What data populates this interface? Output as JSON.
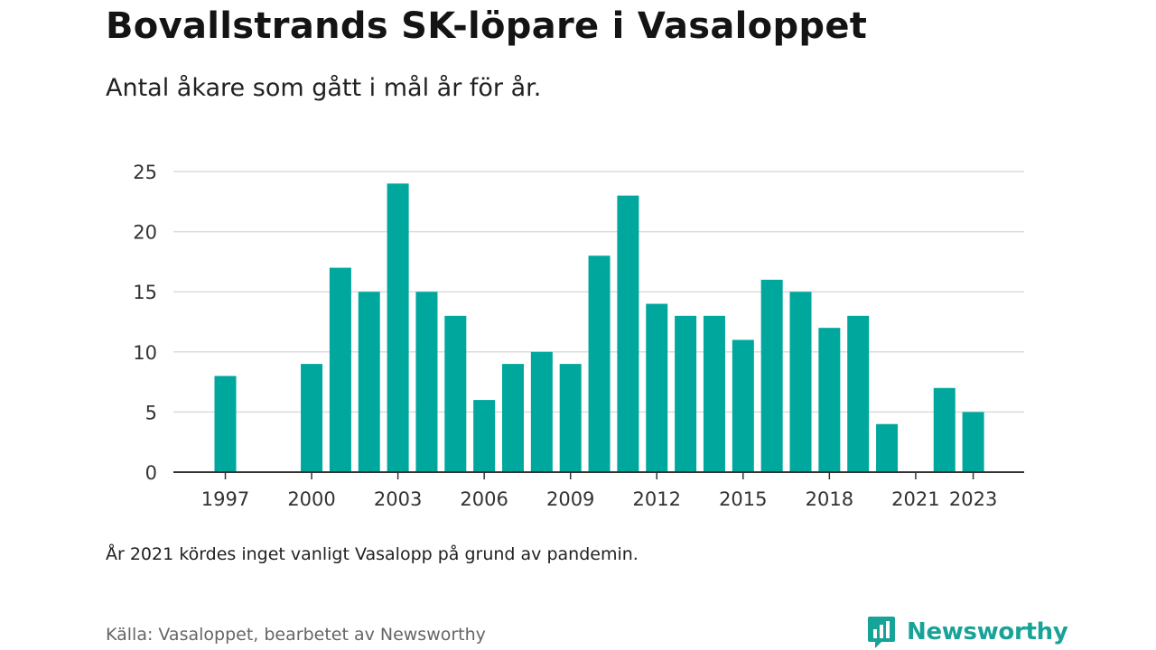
{
  "title": "Bovallstrands SK-löpare i Vasaloppet",
  "subtitle": "Antal åkare som gått i mål år för år.",
  "note": "År 2021 kördes inget vanligt Vasalopp på grund av pandemin.",
  "source": "Källa: Vasaloppet, bearbetet av Newsworthy",
  "brand": {
    "name": "Newsworthy",
    "color": "#17a398",
    "icon": "newsworthy-logo-icon"
  },
  "colors": {
    "bar": "#00a79d",
    "grid": "#dcdcdc",
    "axis": "#333333"
  },
  "chart_data": {
    "type": "bar",
    "categories": [
      "1997",
      "1998",
      "1999",
      "2000",
      "2001",
      "2002",
      "2003",
      "2004",
      "2005",
      "2006",
      "2007",
      "2008",
      "2009",
      "2010",
      "2011",
      "2012",
      "2013",
      "2014",
      "2015",
      "2016",
      "2017",
      "2018",
      "2019",
      "2020",
      "2021",
      "2022",
      "2023"
    ],
    "values": [
      8,
      null,
      null,
      9,
      17,
      15,
      24,
      15,
      13,
      6,
      9,
      10,
      9,
      18,
      23,
      14,
      13,
      13,
      11,
      16,
      15,
      12,
      13,
      4,
      null,
      7,
      5
    ],
    "x_tick_labels": [
      "1997",
      "2000",
      "2003",
      "2006",
      "2009",
      "2012",
      "2015",
      "2018",
      "2021",
      "2023"
    ],
    "y_ticks": [
      0,
      5,
      10,
      15,
      20,
      25
    ],
    "ylim": [
      0,
      25
    ],
    "grid": true
  }
}
